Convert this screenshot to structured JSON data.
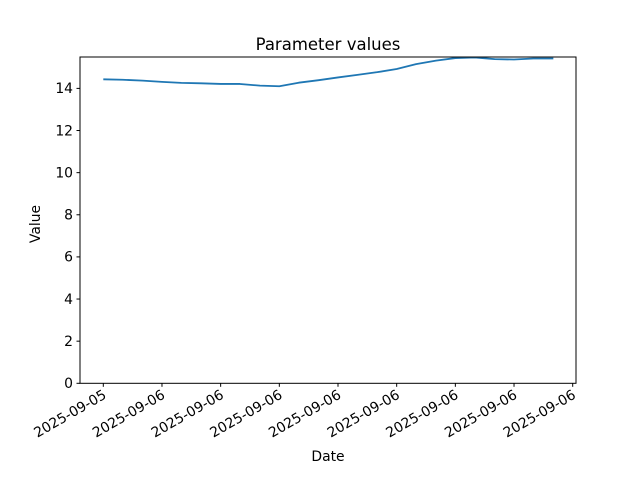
{
  "chart_data": {
    "type": "line",
    "title": "Parameter values",
    "xlabel": "Date",
    "ylabel": "Value",
    "x_tick_labels": [
      "2025-09-05",
      "2025-09-06",
      "2025-09-06",
      "2025-09-06",
      "2025-09-06",
      "2025-09-06",
      "2025-09-06",
      "2025-09-06",
      "2025-09-06"
    ],
    "x_tick_rotation_deg": 30,
    "y_ticks": [
      0,
      2,
      4,
      6,
      8,
      10,
      12,
      14
    ],
    "ylim": [
      0,
      15.49
    ],
    "grid": false,
    "legend": "none",
    "line_color": "#1f77b4",
    "axis_color": "#000000",
    "background_color": "#ffffff",
    "series": [
      {
        "name": "Parameter",
        "x_unit": "x-tick index (0 = first tick 2025-09-05, ticks evenly spaced)",
        "points": [
          [
            0.0,
            14.43
          ],
          [
            0.33,
            14.41
          ],
          [
            0.67,
            14.37
          ],
          [
            1.0,
            14.31
          ],
          [
            1.33,
            14.26
          ],
          [
            1.67,
            14.24
          ],
          [
            2.0,
            14.21
          ],
          [
            2.33,
            14.21
          ],
          [
            2.67,
            14.13
          ],
          [
            3.0,
            14.1
          ],
          [
            3.33,
            14.27
          ],
          [
            3.67,
            14.39
          ],
          [
            4.0,
            14.52
          ],
          [
            4.33,
            14.64
          ],
          [
            4.67,
            14.77
          ],
          [
            5.0,
            14.92
          ],
          [
            5.33,
            15.15
          ],
          [
            5.67,
            15.32
          ],
          [
            6.0,
            15.44
          ],
          [
            6.33,
            15.47
          ],
          [
            6.67,
            15.39
          ],
          [
            7.0,
            15.37
          ],
          [
            7.33,
            15.42
          ],
          [
            7.67,
            15.42
          ]
        ]
      }
    ]
  }
}
